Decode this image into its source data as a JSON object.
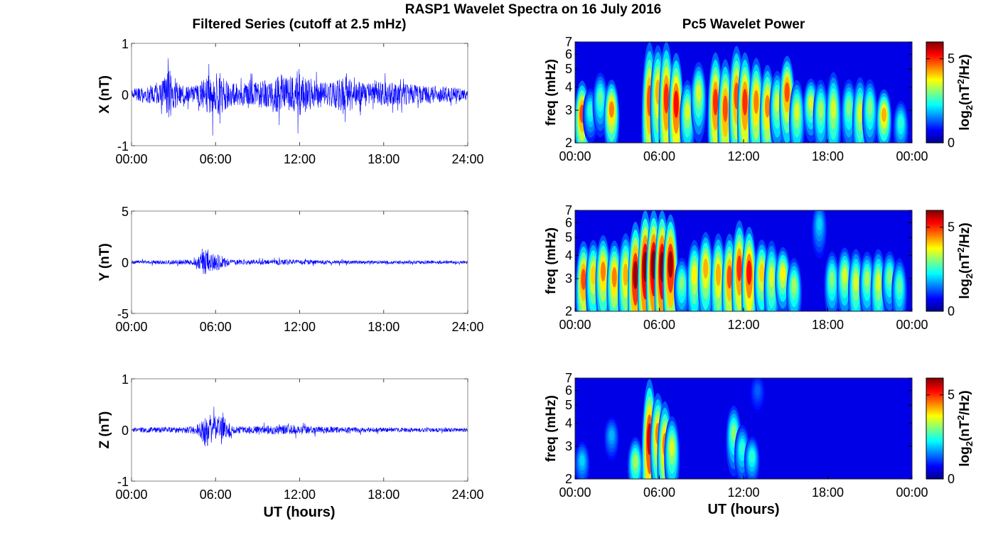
{
  "figure": {
    "title": "RASP1 Wavelet Spectra on 16 July 2016",
    "left_column_title": "Filtered Series (cutoff at 2.5 mHz)",
    "right_column_title": "Pc5 Wavelet Power",
    "xlabel": "UT (hours)"
  },
  "chart_data": [
    {
      "type": "line",
      "component": "X",
      "ylabel": "X (nT)",
      "ylim": [
        -1,
        1
      ],
      "yticks": [
        "-1",
        "0",
        "1"
      ],
      "xlim_hours": [
        0,
        24
      ],
      "xticks": [
        "00:00",
        "06:00",
        "12:00",
        "18:00",
        "24:00"
      ],
      "line_color": "#0000ff",
      "envelope": {
        "x_hours": [
          0,
          1,
          2,
          2.7,
          3.5,
          4.5,
          5.2,
          5.8,
          6.3,
          7,
          8,
          9,
          10,
          10.5,
          11,
          11.5,
          11.9,
          12.5,
          13,
          14,
          14.5,
          15.2,
          16,
          17,
          18,
          19,
          20,
          21,
          22,
          23,
          24
        ],
        "amplitude_nT": [
          0.2,
          0.3,
          0.35,
          0.9,
          0.35,
          0.3,
          0.55,
          0.9,
          0.85,
          0.45,
          0.4,
          0.45,
          0.55,
          0.8,
          0.6,
          0.7,
          0.95,
          0.6,
          0.55,
          0.5,
          0.45,
          0.65,
          0.5,
          0.4,
          0.45,
          0.4,
          0.35,
          0.3,
          0.3,
          0.25,
          0.2
        ]
      }
    },
    {
      "type": "line",
      "component": "Y",
      "ylabel": "Y (nT)",
      "ylim": [
        -5,
        5
      ],
      "yticks": [
        "-5",
        "0",
        "5"
      ],
      "xlim_hours": [
        0,
        24
      ],
      "xticks": [
        "00:00",
        "06:00",
        "12:00",
        "18:00",
        "24:00"
      ],
      "line_color": "#0000ff",
      "envelope": {
        "x_hours": [
          0,
          1,
          2,
          3,
          4,
          4.6,
          5.2,
          5.6,
          6.1,
          6.6,
          7,
          8,
          9,
          10,
          11,
          12,
          13,
          14,
          15,
          16,
          18,
          20,
          22,
          24
        ],
        "amplitude_nT": [
          0.3,
          0.35,
          0.35,
          0.4,
          0.45,
          0.6,
          2.5,
          1.6,
          1.4,
          1.1,
          0.5,
          0.4,
          0.4,
          0.5,
          0.5,
          0.45,
          0.4,
          0.35,
          0.35,
          0.3,
          0.3,
          0.3,
          0.3,
          0.25
        ]
      }
    },
    {
      "type": "line",
      "component": "Z",
      "ylabel": "Z (nT)",
      "ylim": [
        -1,
        1
      ],
      "yticks": [
        "-1",
        "0",
        "1"
      ],
      "xlim_hours": [
        0,
        24
      ],
      "xticks": [
        "00:00",
        "06:00",
        "12:00",
        "18:00",
        "24:00"
      ],
      "line_color": "#0000ff",
      "envelope": {
        "x_hours": [
          0,
          1,
          2,
          3,
          4,
          4.8,
          5.4,
          5.8,
          6.3,
          6.8,
          7.3,
          8,
          9,
          10,
          11,
          12,
          13,
          14,
          15,
          16,
          18,
          20,
          22,
          24
        ],
        "amplitude_nT": [
          0.07,
          0.09,
          0.1,
          0.11,
          0.12,
          0.2,
          0.75,
          0.45,
          0.55,
          0.4,
          0.15,
          0.12,
          0.14,
          0.16,
          0.2,
          0.18,
          0.14,
          0.12,
          0.1,
          0.1,
          0.08,
          0.08,
          0.07,
          0.06
        ]
      }
    },
    {
      "type": "heatmap",
      "component": "X",
      "ylabel": "freq (mHz)",
      "ylim_mHz": [
        2,
        7
      ],
      "yscale": "log",
      "yticks": [
        "2",
        "3",
        "4",
        "5",
        "6",
        "7"
      ],
      "xlim_hours": [
        0,
        24
      ],
      "xticks": [
        "00:00",
        "06:00",
        "12:00",
        "18:00",
        "00:00"
      ],
      "colorbar": {
        "label": "log2(nT2/Hz)",
        "ticks": [
          "0",
          "5"
        ],
        "range": [
          0,
          6
        ],
        "colormap": "jet"
      },
      "bursts": [
        {
          "t_hours": 0.5,
          "peak_mHz": 2.5,
          "power": 4.8,
          "top_mHz": 4.0
        },
        {
          "t_hours": 1.1,
          "peak_mHz": 2.8,
          "power": 2.5,
          "top_mHz": 3.5
        },
        {
          "t_hours": 1.8,
          "peak_mHz": 3.2,
          "power": 2.8,
          "top_mHz": 4.3
        },
        {
          "t_hours": 2.6,
          "peak_mHz": 2.7,
          "power": 4.5,
          "top_mHz": 4.0
        },
        {
          "t_hours": 5.3,
          "peak_mHz": 2.5,
          "power": 4.8,
          "top_mHz": 7.0
        },
        {
          "t_hours": 5.9,
          "peak_mHz": 3.0,
          "power": 4.2,
          "top_mHz": 6.5
        },
        {
          "t_hours": 6.5,
          "peak_mHz": 2.6,
          "power": 5.0,
          "top_mHz": 7.0
        },
        {
          "t_hours": 7.2,
          "peak_mHz": 2.5,
          "power": 5.2,
          "top_mHz": 6.0
        },
        {
          "t_hours": 8.0,
          "peak_mHz": 2.6,
          "power": 3.5,
          "top_mHz": 4.0
        },
        {
          "t_hours": 8.8,
          "peak_mHz": 3.3,
          "power": 3.5,
          "top_mHz": 5.0
        },
        {
          "t_hours": 10.0,
          "peak_mHz": 2.6,
          "power": 5.0,
          "top_mHz": 6.0
        },
        {
          "t_hours": 10.7,
          "peak_mHz": 2.4,
          "power": 4.8,
          "top_mHz": 5.5
        },
        {
          "t_hours": 11.5,
          "peak_mHz": 2.8,
          "power": 4.8,
          "top_mHz": 6.5
        },
        {
          "t_hours": 12.1,
          "peak_mHz": 2.6,
          "power": 5.0,
          "top_mHz": 6.0
        },
        {
          "t_hours": 12.9,
          "peak_mHz": 2.7,
          "power": 4.5,
          "top_mHz": 5.5
        },
        {
          "t_hours": 13.7,
          "peak_mHz": 2.6,
          "power": 4.5,
          "top_mHz": 5.0
        },
        {
          "t_hours": 14.4,
          "peak_mHz": 2.9,
          "power": 3.5,
          "top_mHz": 4.5
        },
        {
          "t_hours": 15.1,
          "peak_mHz": 3.2,
          "power": 4.8,
          "top_mHz": 5.5
        },
        {
          "t_hours": 15.8,
          "peak_mHz": 2.6,
          "power": 3.5,
          "top_mHz": 4.0
        },
        {
          "t_hours": 16.8,
          "peak_mHz": 3.0,
          "power": 3.5,
          "top_mHz": 4.0
        },
        {
          "t_hours": 17.5,
          "peak_mHz": 2.7,
          "power": 3.2,
          "top_mHz": 4.0
        },
        {
          "t_hours": 18.4,
          "peak_mHz": 2.6,
          "power": 3.5,
          "top_mHz": 4.5
        },
        {
          "t_hours": 19.5,
          "peak_mHz": 2.8,
          "power": 3.0,
          "top_mHz": 4.0
        },
        {
          "t_hours": 20.3,
          "peak_mHz": 2.5,
          "power": 3.5,
          "top_mHz": 4.2
        },
        {
          "t_hours": 21.0,
          "peak_mHz": 2.8,
          "power": 3.0,
          "top_mHz": 4.0
        },
        {
          "t_hours": 22.0,
          "peak_mHz": 2.6,
          "power": 4.2,
          "top_mHz": 3.5
        },
        {
          "t_hours": 23.2,
          "peak_mHz": 2.4,
          "power": 2.5,
          "top_mHz": 3.0
        }
      ]
    },
    {
      "type": "heatmap",
      "component": "Y",
      "ylabel": "freq (mHz)",
      "ylim_mHz": [
        2,
        7
      ],
      "yscale": "log",
      "yticks": [
        "2",
        "3",
        "4",
        "5",
        "6",
        "7"
      ],
      "xlim_hours": [
        0,
        24
      ],
      "xticks": [
        "00:00",
        "06:00",
        "12:00",
        "18:00",
        "00:00"
      ],
      "colorbar": {
        "label": "log2(nT2/Hz)",
        "ticks": [
          "0",
          "5"
        ],
        "range": [
          0,
          6
        ],
        "colormap": "jet"
      },
      "bursts": [
        {
          "t_hours": 0.6,
          "peak_mHz": 2.5,
          "power": 4.8,
          "top_mHz": 4.5
        },
        {
          "t_hours": 1.3,
          "peak_mHz": 2.7,
          "power": 4.0,
          "top_mHz": 4.5
        },
        {
          "t_hours": 2.0,
          "peak_mHz": 2.8,
          "power": 4.5,
          "top_mHz": 4.8
        },
        {
          "t_hours": 2.8,
          "peak_mHz": 2.6,
          "power": 4.5,
          "top_mHz": 4.5
        },
        {
          "t_hours": 3.6,
          "peak_mHz": 2.6,
          "power": 4.2,
          "top_mHz": 5.0
        },
        {
          "t_hours": 4.3,
          "peak_mHz": 2.4,
          "power": 5.8,
          "top_mHz": 6.0
        },
        {
          "t_hours": 5.0,
          "peak_mHz": 2.6,
          "power": 6.2,
          "top_mHz": 7.0
        },
        {
          "t_hours": 5.6,
          "peak_mHz": 2.7,
          "power": 6.2,
          "top_mHz": 7.0
        },
        {
          "t_hours": 6.2,
          "peak_mHz": 2.6,
          "power": 6.2,
          "top_mHz": 7.0
        },
        {
          "t_hours": 6.8,
          "peak_mHz": 2.8,
          "power": 5.8,
          "top_mHz": 6.5
        },
        {
          "t_hours": 7.6,
          "peak_mHz": 2.6,
          "power": 3.0,
          "top_mHz": 3.5
        },
        {
          "t_hours": 8.5,
          "peak_mHz": 2.7,
          "power": 3.8,
          "top_mHz": 4.5
        },
        {
          "t_hours": 9.3,
          "peak_mHz": 2.9,
          "power": 4.2,
          "top_mHz": 5.0
        },
        {
          "t_hours": 10.2,
          "peak_mHz": 2.6,
          "power": 4.2,
          "top_mHz": 5.0
        },
        {
          "t_hours": 11.0,
          "peak_mHz": 2.5,
          "power": 4.8,
          "top_mHz": 5.0
        },
        {
          "t_hours": 11.7,
          "peak_mHz": 2.7,
          "power": 5.0,
          "top_mHz": 6.0
        },
        {
          "t_hours": 12.4,
          "peak_mHz": 2.6,
          "power": 5.2,
          "top_mHz": 5.5
        },
        {
          "t_hours": 13.3,
          "peak_mHz": 2.8,
          "power": 4.0,
          "top_mHz": 4.5
        },
        {
          "t_hours": 14.0,
          "peak_mHz": 2.6,
          "power": 3.5,
          "top_mHz": 4.5
        },
        {
          "t_hours": 14.8,
          "peak_mHz": 2.9,
          "power": 3.8,
          "top_mHz": 4.0
        },
        {
          "t_hours": 15.6,
          "peak_mHz": 2.5,
          "power": 3.2,
          "top_mHz": 3.5
        },
        {
          "t_hours": 17.4,
          "peak_mHz": 5.5,
          "power": 2.0,
          "top_mHz": 7.0
        },
        {
          "t_hours": 18.3,
          "peak_mHz": 2.7,
          "power": 3.0,
          "top_mHz": 3.8
        },
        {
          "t_hours": 19.2,
          "peak_mHz": 2.8,
          "power": 3.5,
          "top_mHz": 4.0
        },
        {
          "t_hours": 20.0,
          "peak_mHz": 2.5,
          "power": 3.5,
          "top_mHz": 4.0
        },
        {
          "t_hours": 20.8,
          "peak_mHz": 2.7,
          "power": 3.2,
          "top_mHz": 3.8
        },
        {
          "t_hours": 21.6,
          "peak_mHz": 2.5,
          "power": 3.5,
          "top_mHz": 4.0
        },
        {
          "t_hours": 22.4,
          "peak_mHz": 2.8,
          "power": 3.0,
          "top_mHz": 3.8
        },
        {
          "t_hours": 23.1,
          "peak_mHz": 2.5,
          "power": 2.8,
          "top_mHz": 3.5
        }
      ]
    },
    {
      "type": "heatmap",
      "component": "Z",
      "ylabel": "freq (mHz)",
      "ylim_mHz": [
        2,
        7
      ],
      "yscale": "log",
      "yticks": [
        "2",
        "3",
        "4",
        "5",
        "6",
        "7"
      ],
      "xlim_hours": [
        0,
        24
      ],
      "xticks": [
        "00:00",
        "06:00",
        "12:00",
        "18:00",
        "00:00"
      ],
      "colorbar": {
        "label": "log2(nT2/Hz)",
        "ticks": [
          "0",
          "5"
        ],
        "range": [
          0,
          6
        ],
        "colormap": "jet"
      },
      "bursts": [
        {
          "t_hours": 0.5,
          "peak_mHz": 2.4,
          "power": 2.0,
          "top_mHz": 2.8
        },
        {
          "t_hours": 2.6,
          "peak_mHz": 3.3,
          "power": 1.8,
          "top_mHz": 3.8
        },
        {
          "t_hours": 4.3,
          "peak_mHz": 2.3,
          "power": 3.2,
          "top_mHz": 3.0
        },
        {
          "t_hours": 5.3,
          "peak_mHz": 2.4,
          "power": 5.5,
          "top_mHz": 7.0
        },
        {
          "t_hours": 5.9,
          "peak_mHz": 2.9,
          "power": 4.5,
          "top_mHz": 5.5
        },
        {
          "t_hours": 6.4,
          "peak_mHz": 2.5,
          "power": 4.5,
          "top_mHz": 5.0
        },
        {
          "t_hours": 6.9,
          "peak_mHz": 2.6,
          "power": 3.5,
          "top_mHz": 4.0
        },
        {
          "t_hours": 11.3,
          "peak_mHz": 3.2,
          "power": 3.0,
          "top_mHz": 4.5
        },
        {
          "t_hours": 11.9,
          "peak_mHz": 2.7,
          "power": 2.5,
          "top_mHz": 3.5
        },
        {
          "t_hours": 12.6,
          "peak_mHz": 2.5,
          "power": 2.5,
          "top_mHz": 3.0
        },
        {
          "t_hours": 13.0,
          "peak_mHz": 5.8,
          "power": 1.3,
          "top_mHz": 6.5
        }
      ]
    }
  ]
}
